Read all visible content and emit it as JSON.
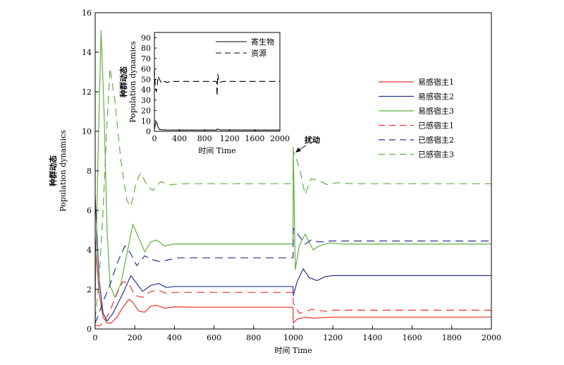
{
  "chart_data": [
    {
      "type": "line",
      "xlabel": "时间 Time",
      "ylabel_cn": "种群动态",
      "ylabel_en": "Population dynamics",
      "xlim": [
        0,
        2000
      ],
      "ylim": [
        0,
        16
      ],
      "xticks": [
        0,
        200,
        400,
        600,
        800,
        1000,
        1200,
        1400,
        1600,
        1800,
        2000
      ],
      "yticks": [
        0,
        2,
        4,
        6,
        8,
        10,
        12,
        14,
        16
      ],
      "grid": false,
      "legend_position": "right",
      "annotation": {
        "text": "扰动",
        "x": 1000,
        "y": 9.0
      },
      "series": [
        {
          "name": "易感宿主1",
          "color": "#e8322c",
          "dash": "solid",
          "x": [
            0,
            20,
            40,
            60,
            80,
            110,
            140,
            170,
            190,
            220,
            250,
            280,
            310,
            350,
            400,
            500,
            999,
            1000,
            1020,
            1060,
            1100,
            1150,
            1200,
            1300,
            2000
          ],
          "y": [
            4.6,
            1.8,
            0.6,
            0.3,
            0.3,
            0.6,
            1.1,
            1.5,
            1.35,
            0.9,
            0.85,
            1.15,
            1.2,
            1.05,
            1.12,
            1.1,
            1.1,
            0.3,
            0.5,
            0.6,
            0.55,
            0.58,
            0.6,
            0.6,
            0.6
          ]
        },
        {
          "name": "易感宿主2",
          "color": "#28348f",
          "dash": "solid",
          "x": [
            0,
            20,
            40,
            60,
            90,
            140,
            180,
            210,
            240,
            280,
            320,
            360,
            400,
            500,
            999,
            1000,
            1020,
            1050,
            1080,
            1120,
            1160,
            1200,
            1300,
            2000
          ],
          "y": [
            6.7,
            2.5,
            0.8,
            0.4,
            0.8,
            1.8,
            2.7,
            2.3,
            1.9,
            2.2,
            2.3,
            2.1,
            2.15,
            2.15,
            2.15,
            1.7,
            2.4,
            3.05,
            2.6,
            2.45,
            2.65,
            2.7,
            2.7,
            2.7
          ]
        },
        {
          "name": "易感宿主3",
          "color": "#5eb13c",
          "dash": "solid",
          "x": [
            0,
            15,
            30,
            45,
            60,
            75,
            100,
            130,
            160,
            190,
            220,
            250,
            280,
            310,
            350,
            400,
            500,
            999,
            1000,
            1010,
            1030,
            1060,
            1100,
            1130,
            1180,
            1250,
            2000
          ],
          "y": [
            1.5,
            9,
            15.1,
            11,
            5,
            2.2,
            1.6,
            2.3,
            3.8,
            5.3,
            4.6,
            3.9,
            4.4,
            4.5,
            4.2,
            4.3,
            4.3,
            4.3,
            9.2,
            3.0,
            4.2,
            4.8,
            4.0,
            4.2,
            4.35,
            4.3,
            4.3
          ]
        },
        {
          "name": "已感宿主1",
          "color": "#e8322c",
          "dash": "dashed",
          "x": [
            0,
            20,
            40,
            70,
            110,
            140,
            170,
            200,
            240,
            280,
            320,
            360,
            400,
            500,
            999,
            1000,
            1030,
            1060,
            1090,
            1120,
            1160,
            1200,
            1300,
            2000
          ],
          "y": [
            0.2,
            0.15,
            0.3,
            0.8,
            1.8,
            2.4,
            2.3,
            1.7,
            1.6,
            1.9,
            1.95,
            1.8,
            1.85,
            1.85,
            1.85,
            1.3,
            0.8,
            0.85,
            1.0,
            0.95,
            0.9,
            0.95,
            0.95,
            0.95
          ]
        },
        {
          "name": "已感宿主2",
          "color": "#28348f",
          "dash": "dashed",
          "x": [
            0,
            20,
            40,
            70,
            110,
            150,
            180,
            210,
            250,
            290,
            330,
            370,
            420,
            500,
            999,
            1000,
            1030,
            1060,
            1090,
            1130,
            1180,
            1250,
            2000
          ],
          "y": [
            0.3,
            0.8,
            1.4,
            2.1,
            3.3,
            4.2,
            3.8,
            3.2,
            3.7,
            3.5,
            3.4,
            3.5,
            3.6,
            3.6,
            3.6,
            5.1,
            4.7,
            4.3,
            4.5,
            4.4,
            4.45,
            4.45,
            4.45
          ]
        },
        {
          "name": "已感宿主3",
          "color": "#5eb13c",
          "dash": "dashed",
          "x": [
            0,
            20,
            40,
            60,
            75,
            100,
            130,
            160,
            180,
            210,
            230,
            260,
            290,
            330,
            380,
            450,
            999,
            1000,
            1030,
            1060,
            1090,
            1130,
            1170,
            1220,
            1300,
            2000
          ],
          "y": [
            0.5,
            2.5,
            6,
            10.5,
            13.2,
            11.5,
            8.5,
            6.5,
            6.2,
            7.5,
            7.9,
            7.3,
            7.0,
            7.45,
            7.3,
            7.35,
            7.35,
            9.0,
            8.2,
            6.8,
            7.6,
            7.5,
            7.3,
            7.4,
            7.35,
            7.35
          ]
        }
      ]
    },
    {
      "type": "line",
      "xlabel": "时间 Time",
      "ylabel_cn": "种群动态",
      "ylabel_en": "Population dynamics",
      "xlim": [
        0,
        2000
      ],
      "ylim": [
        0,
        95
      ],
      "xticks": [
        0,
        400,
        800,
        1200,
        1600,
        2000
      ],
      "yticks": [
        0,
        10,
        20,
        30,
        40,
        50,
        60,
        70,
        80,
        90
      ],
      "grid": false,
      "legend_position": "top-right",
      "series": [
        {
          "name": "寄生物",
          "color": "#000000",
          "dash": "solid",
          "x": [
            0,
            10,
            25,
            40,
            60,
            80,
            120,
            200,
            400,
            990,
            1000,
            1020,
            1060,
            2000
          ],
          "y": [
            2,
            5,
            9,
            8,
            4,
            2,
            1.5,
            1.3,
            1.2,
            1.2,
            2.2,
            1.8,
            1.3,
            1.2
          ]
        },
        {
          "name": "资源",
          "color": "#000000",
          "dash": "dashed",
          "x": [
            0,
            15,
            30,
            45,
            60,
            80,
            120,
            160,
            200,
            260,
            400,
            990,
            1000,
            1010,
            1030,
            1100,
            2000
          ],
          "y": [
            60,
            42,
            38,
            44,
            53,
            50,
            46,
            48,
            47,
            48,
            48,
            48,
            34,
            55,
            47,
            48,
            48
          ]
        }
      ]
    }
  ]
}
